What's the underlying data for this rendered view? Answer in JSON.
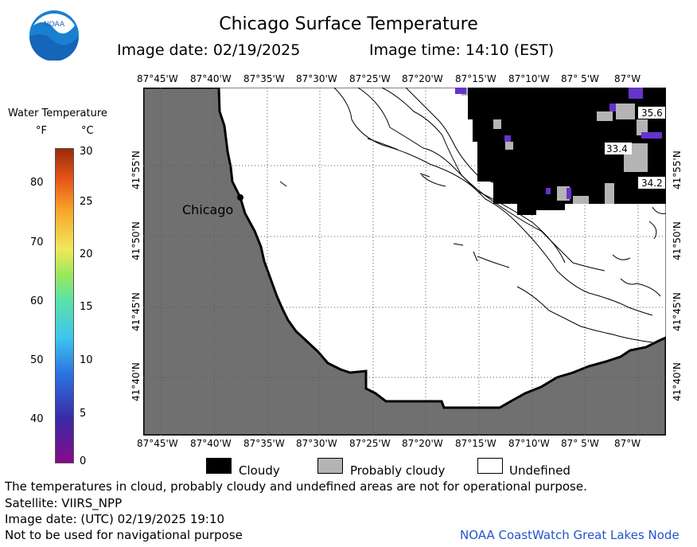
{
  "header": {
    "title": "Chicago Surface Temperature",
    "image_date": "Image date: 02/19/2025",
    "image_time": "Image time: 14:10 (EST)"
  },
  "logo": {
    "text": "NOAA"
  },
  "colorbar": {
    "title": "Water Temperature",
    "unit_f": "°F",
    "unit_c": "°C",
    "f_ticks": [
      "80",
      "70",
      "60",
      "50",
      "40"
    ],
    "c_ticks": [
      "30",
      "25",
      "20",
      "15",
      "10",
      "5",
      "0"
    ]
  },
  "map": {
    "top_lon_labels": [
      "87°45'W",
      "87°40'W",
      "87°35'W",
      "87°30'W",
      "87°25'W",
      "87°20'W",
      "87°15'W",
      "87°10'W",
      "87° 5'W",
      "87°W"
    ],
    "bottom_lon_labels": [
      "87°45'W",
      "87°40'W",
      "87°35'W",
      "87°30'W",
      "87°25'W",
      "87°20'W",
      "87°15'W",
      "87°10'W",
      "87° 5'W",
      "87°W"
    ],
    "lat_labels": [
      "41°55'N",
      "41°50'N",
      "41°45'N",
      "41°40'N"
    ],
    "city_label": "Chicago",
    "temp_labels": [
      "35.6",
      "33.4",
      "34.2"
    ],
    "colors": {
      "land": "#707070",
      "cloudy": "#000000",
      "probably_cloudy": "#b4b4b4",
      "cold_water": "#6633cc"
    }
  },
  "legend": {
    "cloudy": "Cloudy",
    "probably_cloudy": "Probably cloudy",
    "undefined": "Undefined"
  },
  "footer": {
    "disclaimer": "The temperatures in cloud, probably cloudy and undefined areas are not for operational purpose.",
    "satellite": "Satellite: VIIRS_NPP",
    "utc_date": "Image date: (UTC) 02/19/2025  19:10",
    "navigation": "Not to be used for navigational purpose",
    "credit": "NOAA CoastWatch Great Lakes Node"
  }
}
